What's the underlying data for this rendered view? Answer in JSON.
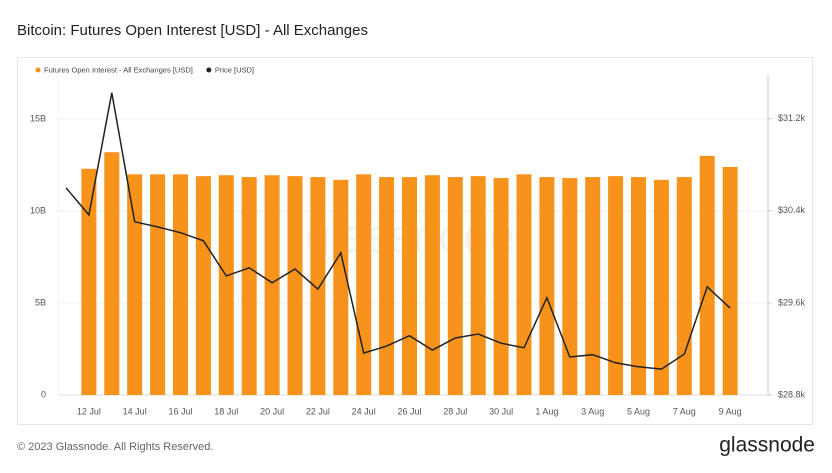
{
  "chart_data": {
    "type": "bar-line",
    "title": "Bitcoin: Futures Open Interest [USD] - All Exchanges",
    "watermark": "glassnode",
    "footer": "© 2023 Glassnode. All Rights Reserved.",
    "logo": "glassnode",
    "categories": [
      null,
      "12 Jul",
      null,
      "14 Jul",
      null,
      "16 Jul",
      null,
      "18 Jul",
      null,
      "20 Jul",
      null,
      "22 Jul",
      null,
      "24 Jul",
      null,
      "26 Jul",
      null,
      "28 Jul",
      null,
      "30 Jul",
      null,
      "1 Aug",
      null,
      "3 Aug",
      null,
      "5 Aug",
      null,
      "7 Aug",
      null,
      "9 Aug"
    ],
    "series": [
      {
        "name": "Futures Open Interest - All Exchanges [USD]",
        "color": "#f7931a",
        "values": [
          null,
          12.3,
          13.2,
          12.0,
          12.0,
          12.0,
          11.9,
          11.95,
          11.85,
          11.95,
          11.9,
          11.85,
          11.7,
          12.0,
          11.85,
          11.85,
          11.95,
          11.85,
          11.9,
          11.8,
          12.0,
          11.85,
          11.8,
          11.85,
          11.9,
          11.85,
          11.7,
          11.85,
          13.0,
          12.4
        ]
      },
      {
        "name": "Price [USD]",
        "color": "#222222",
        "axis": "y2",
        "values": [
          30600,
          30365,
          31425,
          30305,
          30260,
          30210,
          30140,
          29835,
          29905,
          29775,
          29895,
          29720,
          30035,
          29165,
          29225,
          29315,
          29190,
          29295,
          29330,
          29250,
          29210,
          29645,
          29130,
          29150,
          29080,
          29045,
          29025,
          29155,
          29740,
          29555
        ]
      }
    ],
    "ylim": [
      0,
      17.4
    ],
    "yticks": [
      {
        "value": 0,
        "label": "0"
      },
      {
        "value": 5,
        "label": "5B"
      },
      {
        "value": 10,
        "label": "10B"
      },
      {
        "value": 15,
        "label": "15B"
      }
    ],
    "y2lim": [
      28800,
      31580
    ],
    "y2ticks": [
      {
        "value": 28800,
        "label": "$28.8k"
      },
      {
        "value": 29600,
        "label": "$29.6k"
      },
      {
        "value": 30400,
        "label": "$30.4k"
      },
      {
        "value": 31200,
        "label": "$31.2k"
      }
    ],
    "grid": true,
    "legend": "top-left"
  }
}
